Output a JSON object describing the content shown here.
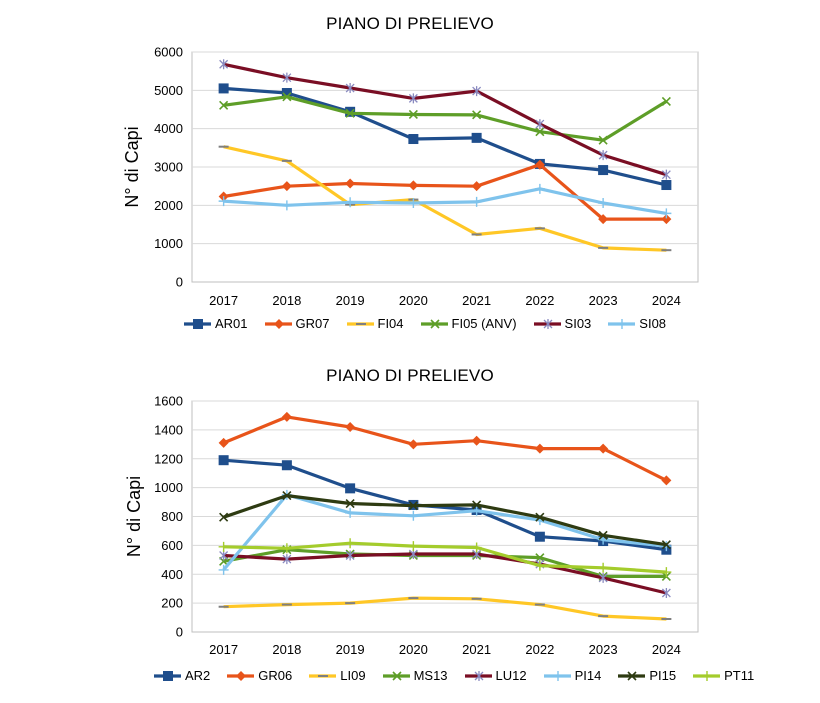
{
  "chart_data": [
    {
      "type": "line",
      "title": "PIANO DI PRELIEVO",
      "ylabel": "N° di Capi",
      "xlabel": "",
      "categories": [
        "2017",
        "2018",
        "2019",
        "2020",
        "2021",
        "2022",
        "2023",
        "2024"
      ],
      "ylim": [
        0,
        6000
      ],
      "yticks": [
        0,
        1000,
        2000,
        3000,
        4000,
        5000,
        6000
      ],
      "yticklabels": [
        "0",
        "1000",
        "2000",
        "3000",
        "4000",
        "5000",
        "6000"
      ],
      "grid": true,
      "legend_position": "bottom",
      "series": [
        {
          "name": "AR01",
          "color": "#1F4E8C",
          "marker": "square",
          "values": [
            5050,
            4930,
            4440,
            3730,
            3760,
            3080,
            2920,
            2530
          ]
        },
        {
          "name": "GR07",
          "color": "#E8541A",
          "marker": "diamond",
          "values": [
            2230,
            2500,
            2570,
            2520,
            2500,
            3060,
            1640,
            1640
          ]
        },
        {
          "name": "FI04",
          "color": "#FFC726",
          "marker": "dash",
          "values": [
            3530,
            3160,
            2020,
            2150,
            1240,
            1400,
            890,
            830
          ]
        },
        {
          "name": "FI05 (ANV)",
          "color": "#5E9E28",
          "marker": "x",
          "values": [
            4610,
            4830,
            4400,
            4370,
            4360,
            3920,
            3700,
            4710
          ]
        },
        {
          "name": "SI03",
          "color": "#7A0E24",
          "marker": "star",
          "values": [
            5680,
            5330,
            5060,
            4790,
            4980,
            4120,
            3310,
            2800
          ]
        },
        {
          "name": "SI08",
          "color": "#7FC3EC",
          "marker": "plus",
          "values": [
            2110,
            2000,
            2080,
            2060,
            2090,
            2430,
            2060,
            1790
          ]
        }
      ]
    },
    {
      "type": "line",
      "title": "PIANO DI PRELIEVO",
      "ylabel": "N° di Capi",
      "xlabel": "",
      "categories": [
        "2017",
        "2018",
        "2019",
        "2020",
        "2021",
        "2022",
        "2023",
        "2024"
      ],
      "ylim": [
        0,
        1600
      ],
      "yticks": [
        0,
        200,
        400,
        600,
        800,
        1000,
        1200,
        1400,
        1600
      ],
      "yticklabels": [
        "0",
        "200",
        "400",
        "600",
        "800",
        "1000",
        "1200",
        "1400",
        "1600"
      ],
      "grid": true,
      "legend_position": "bottom",
      "series": [
        {
          "name": "AR2",
          "color": "#1F4E8C",
          "marker": "square",
          "values": [
            1190,
            1155,
            995,
            880,
            845,
            660,
            630,
            570
          ]
        },
        {
          "name": "GR06",
          "color": "#E8541A",
          "marker": "diamond",
          "values": [
            1310,
            1490,
            1420,
            1300,
            1325,
            1270,
            1270,
            1050
          ]
        },
        {
          "name": "LI09",
          "color": "#FFC726",
          "marker": "dash",
          "values": [
            175,
            190,
            200,
            235,
            230,
            190,
            110,
            90
          ]
        },
        {
          "name": "MS13",
          "color": "#5E9E28",
          "marker": "x",
          "values": [
            490,
            570,
            540,
            530,
            530,
            515,
            385,
            385
          ]
        },
        {
          "name": "LU12",
          "color": "#7A0E24",
          "marker": "star",
          "values": [
            530,
            505,
            530,
            540,
            540,
            470,
            375,
            270
          ]
        },
        {
          "name": "PI14",
          "color": "#7FC3EC",
          "marker": "plus",
          "values": [
            430,
            950,
            825,
            805,
            840,
            775,
            640,
            595
          ]
        },
        {
          "name": "PI15",
          "color": "#2E3B12",
          "marker": "x",
          "values": [
            795,
            945,
            890,
            875,
            880,
            795,
            670,
            605
          ]
        },
        {
          "name": "PT11",
          "color": "#A4CC2C",
          "marker": "plus",
          "values": [
            590,
            580,
            615,
            595,
            585,
            460,
            445,
            415
          ]
        }
      ]
    }
  ]
}
